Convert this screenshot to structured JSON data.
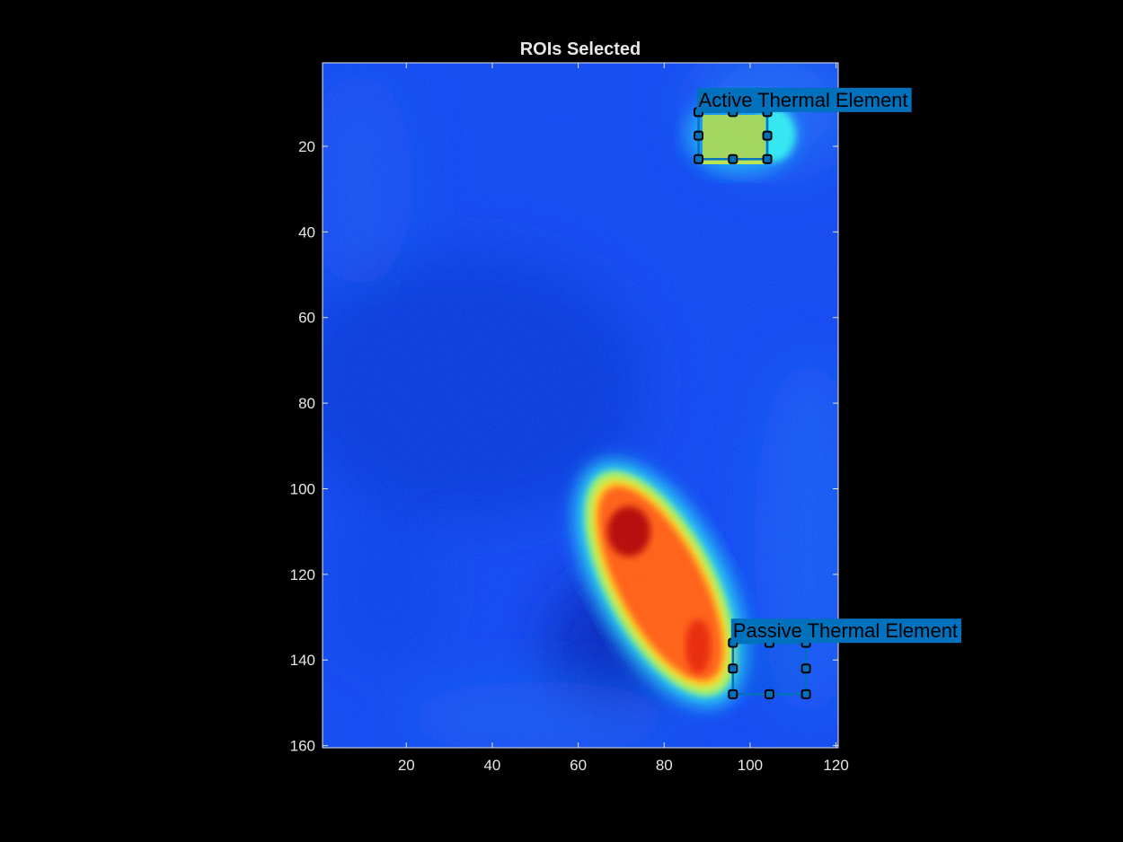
{
  "figure": {
    "title": "ROIs Selected",
    "background": "#000000",
    "axis_color": "#e6e6e6"
  },
  "image": {
    "colormap": "jet",
    "columns": 120,
    "rows": 160
  },
  "axes": {
    "x": {
      "range": [
        0.5,
        120.5
      ],
      "ticks": [
        20,
        40,
        60,
        80,
        100,
        120
      ],
      "tick_labels": [
        "20",
        "40",
        "60",
        "80",
        "100",
        "120"
      ]
    },
    "y": {
      "range": [
        0.5,
        160.5
      ],
      "reversed": true,
      "ticks": [
        20,
        40,
        60,
        80,
        100,
        120,
        140,
        160
      ],
      "tick_labels": [
        "20",
        "40",
        "60",
        "80",
        "100",
        "120",
        "140",
        "160"
      ]
    }
  },
  "rois": [
    {
      "label": "Active Thermal Element",
      "x": [
        88,
        104
      ],
      "y": [
        12,
        23
      ],
      "edge_color": "#0072bd",
      "label_background": "#0072bd"
    },
    {
      "label": "Passive Thermal Element",
      "x": [
        96,
        113
      ],
      "y": [
        136,
        148
      ],
      "edge_color": "#0072bd",
      "label_background": "#0072bd"
    }
  ]
}
